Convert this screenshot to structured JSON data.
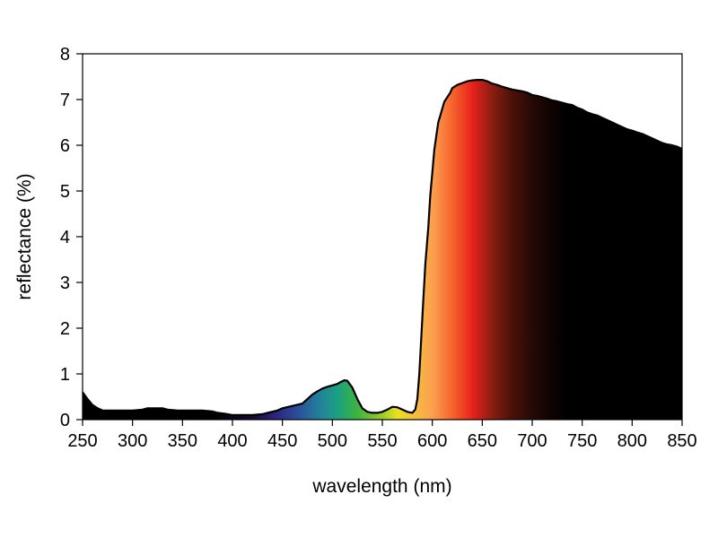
{
  "chart_data": {
    "type": "area",
    "title": "",
    "xlabel": "wavelength (nm)",
    "ylabel": "reflectance (%)",
    "xlim": [
      250,
      850
    ],
    "ylim": [
      0,
      8
    ],
    "x_ticks": [
      "250",
      "300",
      "350",
      "400",
      "450",
      "500",
      "550",
      "600",
      "650",
      "700",
      "750",
      "800",
      "850"
    ],
    "y_ticks": [
      "0",
      "1",
      "2",
      "3",
      "4",
      "5",
      "6",
      "7",
      "8"
    ],
    "grid": false,
    "fill": "spectral colour gradient under the curve",
    "series": [
      {
        "x": [
          250,
          255,
          260,
          265,
          270,
          280,
          290,
          300,
          310,
          315,
          330,
          335,
          345,
          360,
          370,
          380,
          385,
          395,
          400,
          410,
          420,
          430,
          435,
          445,
          450,
          460,
          470,
          475,
          480,
          485,
          490,
          495,
          500,
          505,
          508,
          512,
          515,
          520,
          525,
          530,
          535,
          540,
          545,
          550,
          555,
          560,
          565,
          570,
          575,
          580,
          583,
          585,
          587,
          589,
          591,
          593,
          596,
          598,
          600,
          602,
          604,
          606,
          608,
          610,
          612,
          615,
          618,
          620,
          625,
          630,
          635,
          640,
          645,
          650,
          655,
          660,
          665,
          670,
          675,
          680,
          685,
          690,
          695,
          700,
          705,
          710,
          715,
          720,
          725,
          730,
          735,
          740,
          745,
          750,
          755,
          760,
          765,
          770,
          775,
          780,
          785,
          790,
          795,
          800,
          805,
          810,
          815,
          820,
          825,
          830,
          835,
          840,
          845,
          850
        ],
        "y": [
          0.6,
          0.45,
          0.32,
          0.25,
          0.2,
          0.2,
          0.2,
          0.2,
          0.22,
          0.25,
          0.25,
          0.22,
          0.2,
          0.2,
          0.2,
          0.18,
          0.15,
          0.12,
          0.1,
          0.1,
          0.1,
          0.12,
          0.15,
          0.2,
          0.25,
          0.3,
          0.35,
          0.45,
          0.55,
          0.62,
          0.68,
          0.72,
          0.75,
          0.78,
          0.82,
          0.86,
          0.85,
          0.7,
          0.45,
          0.25,
          0.17,
          0.15,
          0.15,
          0.17,
          0.22,
          0.28,
          0.27,
          0.22,
          0.17,
          0.15,
          0.22,
          0.45,
          1.0,
          1.8,
          2.6,
          3.4,
          4.2,
          4.9,
          5.4,
          5.9,
          6.2,
          6.5,
          6.65,
          6.8,
          6.95,
          7.05,
          7.15,
          7.25,
          7.32,
          7.36,
          7.4,
          7.42,
          7.43,
          7.43,
          7.4,
          7.35,
          7.32,
          7.28,
          7.25,
          7.22,
          7.2,
          7.18,
          7.15,
          7.1,
          7.08,
          7.05,
          7.02,
          6.98,
          6.96,
          6.93,
          6.9,
          6.88,
          6.82,
          6.78,
          6.72,
          6.68,
          6.65,
          6.6,
          6.55,
          6.5,
          6.45,
          6.4,
          6.35,
          6.32,
          6.28,
          6.25,
          6.2,
          6.15,
          6.1,
          6.05,
          6.02,
          6.0,
          5.97,
          5.92
        ]
      }
    ],
    "colors": {
      "outline": "#000000",
      "gradient": [
        {
          "nm": 380,
          "color": "#000000"
        },
        {
          "nm": 420,
          "color": "#1a0a33"
        },
        {
          "nm": 440,
          "color": "#2b1f7a"
        },
        {
          "nm": 465,
          "color": "#2b4d9a"
        },
        {
          "nm": 490,
          "color": "#22869a"
        },
        {
          "nm": 505,
          "color": "#1aa080"
        },
        {
          "nm": 525,
          "color": "#3db33f"
        },
        {
          "nm": 550,
          "color": "#9ccc28"
        },
        {
          "nm": 565,
          "color": "#e8e020"
        },
        {
          "nm": 580,
          "color": "#f5c23a"
        },
        {
          "nm": 600,
          "color": "#fba04f"
        },
        {
          "nm": 620,
          "color": "#f5642c"
        },
        {
          "nm": 640,
          "color": "#e8221b"
        },
        {
          "nm": 660,
          "color": "#8a1d12"
        },
        {
          "nm": 680,
          "color": "#4a1208"
        },
        {
          "nm": 700,
          "color": "#250905"
        },
        {
          "nm": 720,
          "color": "#0d0302"
        },
        {
          "nm": 735,
          "color": "#000000"
        }
      ]
    }
  }
}
